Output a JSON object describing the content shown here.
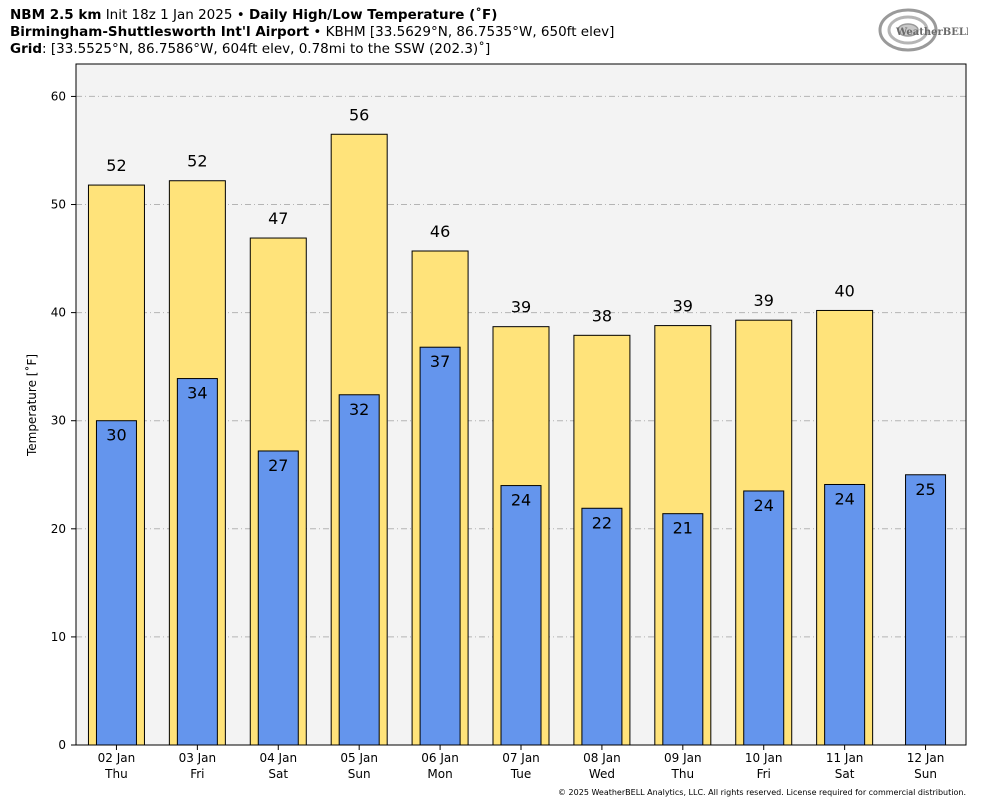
{
  "header": {
    "line1": {
      "model": "NBM 2.5 km",
      "init": "Init 18z 1 Jan 2025",
      "sep": "•",
      "product": "Daily High/Low Temperature (˚F)"
    },
    "line2": {
      "station": "Birmingham-Shuttlesworth Int'l Airport",
      "sep": "•",
      "detail": "KBHM [33.5629°N, 86.7535°W, 650ft elev]"
    },
    "line3": {
      "label": "Grid",
      "detail": ": [33.5525°N, 86.7586°W, 604ft elev, 0.78mi to the SSW (202.3)˚]"
    }
  },
  "logo": {
    "text": "WeatherBELL",
    "name": "weatherbell-logo"
  },
  "footer": "© 2025 WeatherBELL Analytics, LLC. All rights reserved. License required for commercial distribution.",
  "chart_data": {
    "type": "bar",
    "ylabel": "Temperature [˚F]",
    "xlabel": "",
    "ylim": [
      0,
      63
    ],
    "yticks": [
      0,
      10,
      20,
      30,
      40,
      50,
      60
    ],
    "grid": true,
    "categories": [
      {
        "date": "02 Jan",
        "day": "Thu"
      },
      {
        "date": "03 Jan",
        "day": "Fri"
      },
      {
        "date": "04 Jan",
        "day": "Sat"
      },
      {
        "date": "05 Jan",
        "day": "Sun"
      },
      {
        "date": "06 Jan",
        "day": "Mon"
      },
      {
        "date": "07 Jan",
        "day": "Tue"
      },
      {
        "date": "08 Jan",
        "day": "Wed"
      },
      {
        "date": "09 Jan",
        "day": "Thu"
      },
      {
        "date": "10 Jan",
        "day": "Fri"
      },
      {
        "date": "11 Jan",
        "day": "Sat"
      },
      {
        "date": "12 Jan",
        "day": "Sun"
      }
    ],
    "series": [
      {
        "key": "high",
        "color": "#FFE37A",
        "values": [
          51.8,
          52.2,
          46.9,
          56.5,
          45.7,
          38.7,
          37.9,
          38.8,
          39.3,
          40.2,
          null
        ],
        "labels": [
          "52",
          "52",
          "47",
          "56",
          "46",
          "39",
          "38",
          "39",
          "39",
          "40",
          ""
        ]
      },
      {
        "key": "low",
        "color": "#6495ED",
        "values": [
          30.0,
          33.9,
          27.2,
          32.4,
          36.8,
          24.0,
          21.9,
          21.4,
          23.5,
          24.1,
          25.0
        ],
        "labels": [
          "30",
          "34",
          "27",
          "32",
          "37",
          "24",
          "22",
          "21",
          "24",
          "24",
          "25"
        ]
      }
    ]
  }
}
